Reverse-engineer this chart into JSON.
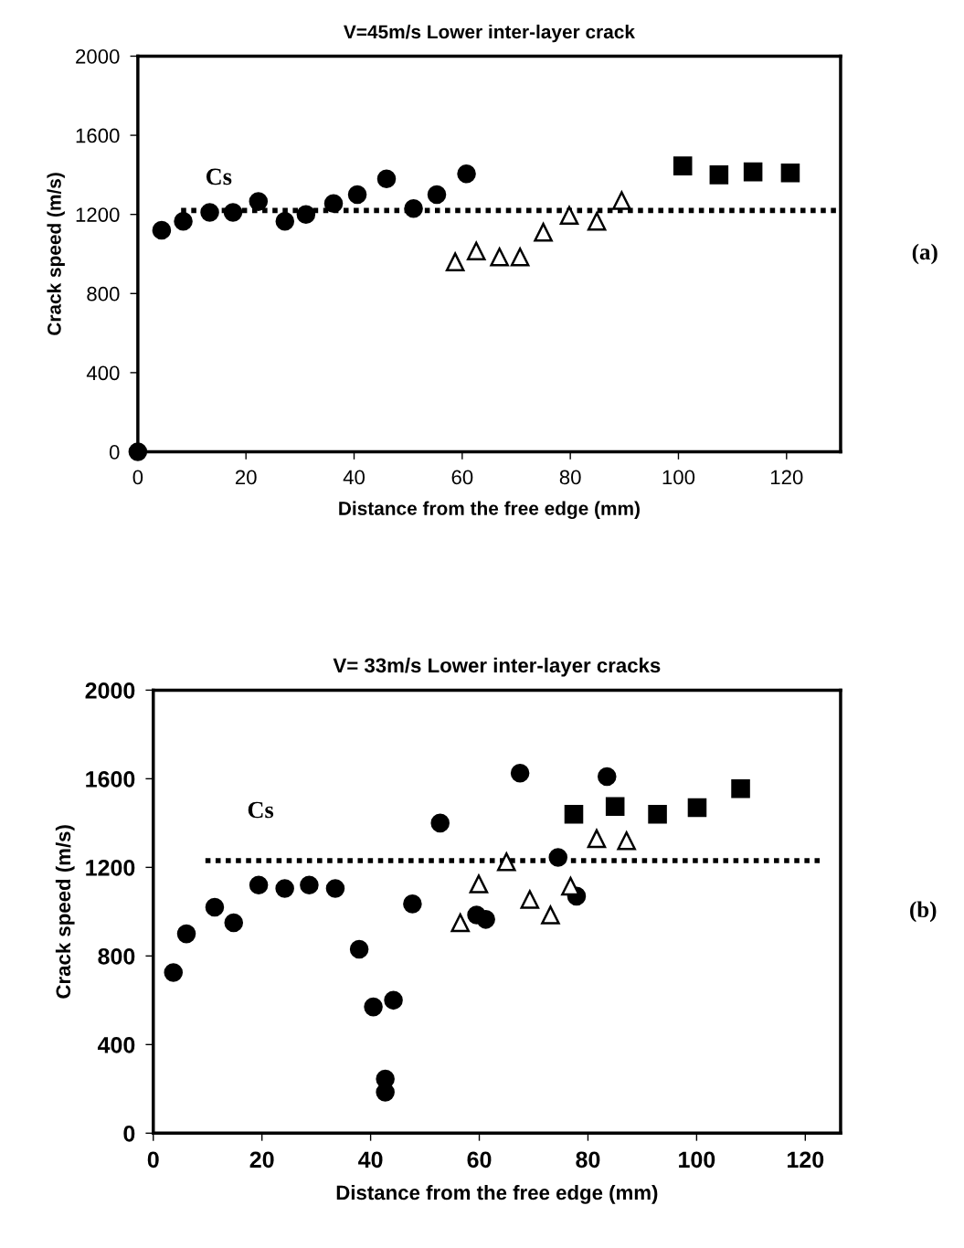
{
  "chart_data": [
    {
      "type": "scatter",
      "title": "V=45m/s Lower inter-layer crack",
      "xlabel": "Distance from the free edge (mm)",
      "ylabel": "Crack speed (m/s)",
      "xlim": [
        0,
        130
      ],
      "xticks": [
        0,
        20,
        40,
        60,
        80,
        100,
        120
      ],
      "ylim": [
        0,
        2000
      ],
      "yticks": [
        0,
        400,
        800,
        1200,
        1600,
        2000
      ],
      "grid": false,
      "legend": false,
      "series": [
        {
          "color": "#000000",
          "marker": "circle",
          "x": [
            0,
            4.4,
            8.4,
            13.3,
            17.6,
            22.3,
            27.2,
            31.1,
            36.2,
            40.6,
            46,
            51,
            55.3,
            60.8
          ],
          "values": [
            0,
            1120,
            1165,
            1210,
            1210,
            1265,
            1165,
            1200,
            1255,
            1300,
            1380,
            1230,
            1300,
            1405
          ]
        },
        {
          "color": "#000000",
          "marker": "triangle",
          "x": [
            58.7,
            62.6,
            66.9,
            70.7,
            75,
            79.8,
            84.9,
            89.5
          ],
          "values": [
            960,
            1015,
            985,
            985,
            1110,
            1195,
            1165,
            1270
          ]
        },
        {
          "color": "#000000",
          "marker": "square",
          "x": [
            100.8,
            107.5,
            113.8,
            120.7
          ],
          "values": [
            1445,
            1400,
            1415,
            1410
          ]
        },
        {
          "type": "line",
          "color": "#000000",
          "line_style": "dotted",
          "marker": "none",
          "x": [
            8,
            130
          ],
          "values": [
            1220,
            1220
          ]
        }
      ],
      "annotations": [
        "Cs",
        "(a)"
      ]
    },
    {
      "type": "scatter",
      "title": "V= 33m/s Lower inter-layer cracks",
      "xlabel": "Distance from the free edge (mm)",
      "ylabel": "Crack speed (m/s)",
      "xlim": [
        0,
        126.5
      ],
      "xticks": [
        0,
        20,
        40,
        60,
        80,
        100,
        120
      ],
      "ylim": [
        0,
        2000
      ],
      "yticks": [
        0,
        400,
        800,
        1200,
        1600,
        2000
      ],
      "grid": false,
      "legend": false,
      "series": [
        {
          "color": "#000000",
          "marker": "circle",
          "x": [
            3.7,
            6.1,
            11.3,
            14.8,
            19.4,
            24.2,
            28.7,
            33.5,
            37.9,
            40.5,
            44.2,
            42.7,
            42.7,
            47.7,
            52.8,
            59.5,
            61.2,
            67.5,
            74.5,
            77.9,
            83.5
          ],
          "values": [
            725,
            900,
            1020,
            950,
            1120,
            1105,
            1120,
            1105,
            830,
            570,
            600,
            245,
            185,
            1035,
            1400,
            985,
            965,
            1625,
            1245,
            1070,
            1610
          ]
        },
        {
          "color": "#000000",
          "marker": "triangle",
          "x": [
            56.5,
            59.9,
            65,
            69.3,
            73.1,
            76.8,
            81.6,
            87.1
          ],
          "values": [
            950,
            1125,
            1225,
            1055,
            985,
            1115,
            1330,
            1320
          ]
        },
        {
          "color": "#000000",
          "marker": "square",
          "x": [
            77.4,
            85,
            92.8,
            100.1,
            108.1
          ],
          "values": [
            1440,
            1475,
            1440,
            1470,
            1555
          ]
        },
        {
          "type": "line",
          "color": "#000000",
          "line_style": "dotted",
          "marker": "none",
          "x": [
            9.6,
            123.2
          ],
          "values": [
            1230,
            1230
          ]
        }
      ],
      "annotations": [
        "Cs",
        "(b)"
      ]
    }
  ]
}
